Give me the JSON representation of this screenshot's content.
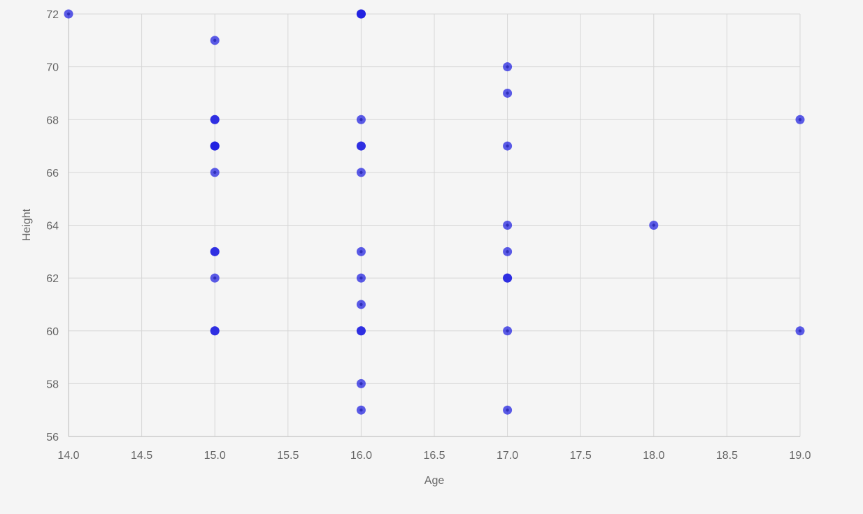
{
  "chart_data": {
    "type": "scatter",
    "title": "",
    "xlabel": "Age",
    "ylabel": "Height",
    "xlim": [
      14,
      19
    ],
    "ylim": [
      56,
      72
    ],
    "x_ticks": [
      "14.0",
      "14.5",
      "15.0",
      "15.5",
      "16.0",
      "16.5",
      "17.0",
      "17.5",
      "18.0",
      "18.5",
      "19.0"
    ],
    "y_ticks": [
      "56",
      "58",
      "60",
      "62",
      "64",
      "66",
      "68",
      "70",
      "72"
    ],
    "grid": true,
    "legend": "none",
    "point_color": "#1f1fe0",
    "series": [
      {
        "points": [
          {
            "x": 14,
            "y": 72,
            "count": 1
          },
          {
            "x": 15,
            "y": 71,
            "count": 1
          },
          {
            "x": 15,
            "y": 68,
            "count": 2
          },
          {
            "x": 15,
            "y": 67,
            "count": 3
          },
          {
            "x": 15,
            "y": 66,
            "count": 1
          },
          {
            "x": 15,
            "y": 63,
            "count": 2
          },
          {
            "x": 15,
            "y": 62,
            "count": 1
          },
          {
            "x": 15,
            "y": 60,
            "count": 2
          },
          {
            "x": 16,
            "y": 72,
            "count": 3
          },
          {
            "x": 16,
            "y": 68,
            "count": 1
          },
          {
            "x": 16,
            "y": 67,
            "count": 2
          },
          {
            "x": 16,
            "y": 66,
            "count": 1
          },
          {
            "x": 16,
            "y": 63,
            "count": 1
          },
          {
            "x": 16,
            "y": 62,
            "count": 1
          },
          {
            "x": 16,
            "y": 61,
            "count": 1
          },
          {
            "x": 16,
            "y": 60,
            "count": 2
          },
          {
            "x": 16,
            "y": 58,
            "count": 1
          },
          {
            "x": 16,
            "y": 57,
            "count": 1
          },
          {
            "x": 17,
            "y": 70,
            "count": 1
          },
          {
            "x": 17,
            "y": 69,
            "count": 1
          },
          {
            "x": 17,
            "y": 67,
            "count": 1
          },
          {
            "x": 17,
            "y": 64,
            "count": 1
          },
          {
            "x": 17,
            "y": 63,
            "count": 1
          },
          {
            "x": 17,
            "y": 62,
            "count": 2
          },
          {
            "x": 17,
            "y": 60,
            "count": 1
          },
          {
            "x": 17,
            "y": 57,
            "count": 1
          },
          {
            "x": 18,
            "y": 64,
            "count": 1
          },
          {
            "x": 19,
            "y": 68,
            "count": 1
          },
          {
            "x": 19,
            "y": 60,
            "count": 1
          }
        ]
      }
    ]
  }
}
